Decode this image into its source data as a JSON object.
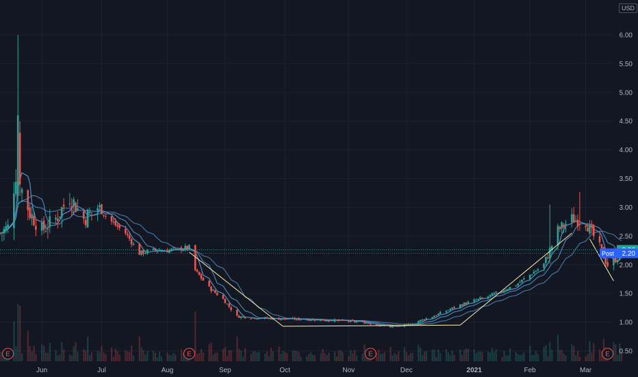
{
  "currency": "USD",
  "colors": {
    "background": "#131722",
    "up": "#26a69a",
    "down": "#ef5350",
    "ma": "#5b9bd5",
    "trendline": "#fff3b0",
    "last_price_label": "#26a69a",
    "post_label": "#2962ff"
  },
  "price_label": {
    "value": "2.26"
  },
  "post_label": {
    "name": "Post",
    "value": "2.20"
  },
  "chart_data": {
    "type": "candlestick",
    "title": "",
    "xlabel": "",
    "ylabel": "",
    "currency": "USD",
    "ylim": [
      0.4,
      6.4
    ],
    "y_ticks": [
      "0.50",
      "1.00",
      "1.50",
      "2.00",
      "2.50",
      "3.00",
      "3.50",
      "4.00",
      "4.50",
      "5.00",
      "5.50",
      "6.00"
    ],
    "x_ticks": [
      {
        "label": "Jun",
        "date": "2020-06-01"
      },
      {
        "label": "Jul",
        "date": "2020-07-01"
      },
      {
        "label": "Aug",
        "date": "2020-08-03"
      },
      {
        "label": "Sep",
        "date": "2020-09-01"
      },
      {
        "label": "Oct",
        "date": "2020-10-01"
      },
      {
        "label": "Nov",
        "date": "2020-11-02"
      },
      {
        "label": "Dec",
        "date": "2020-12-01"
      },
      {
        "label": "2021",
        "date": "2021-01-04",
        "bold": true
      },
      {
        "label": "Feb",
        "date": "2021-02-01"
      },
      {
        "label": "Mar",
        "date": "2021-03-01"
      }
    ],
    "date_range": [
      "2020-05-11",
      "2021-03-19"
    ],
    "earnings_markers": [
      {
        "label": "E",
        "date": "2020-05-15"
      },
      {
        "label": "E",
        "date": "2020-08-14"
      },
      {
        "label": "E",
        "date": "2020-11-13"
      },
      {
        "label": "E",
        "date": "2021-03-12"
      }
    ],
    "price_waypoints": [
      {
        "date": "2020-05-11",
        "close": 2.55
      },
      {
        "date": "2020-05-15",
        "close": 2.65
      },
      {
        "date": "2020-05-19",
        "close": 3.6
      },
      {
        "date": "2020-05-20",
        "close": 4.4
      },
      {
        "date": "2020-05-21",
        "close": 3.4
      },
      {
        "date": "2020-05-26",
        "close": 2.9
      },
      {
        "date": "2020-06-01",
        "close": 2.6
      },
      {
        "date": "2020-06-08",
        "close": 2.8
      },
      {
        "date": "2020-06-15",
        "close": 3.2
      },
      {
        "date": "2020-06-22",
        "close": 2.8
      },
      {
        "date": "2020-06-29",
        "close": 3.0
      },
      {
        "date": "2020-07-06",
        "close": 2.75
      },
      {
        "date": "2020-07-13",
        "close": 2.55
      },
      {
        "date": "2020-07-20",
        "close": 2.2
      },
      {
        "date": "2020-07-27",
        "close": 2.25
      },
      {
        "date": "2020-08-03",
        "close": 2.25
      },
      {
        "date": "2020-08-10",
        "close": 2.28
      },
      {
        "date": "2020-08-14",
        "close": 2.3
      },
      {
        "date": "2020-08-17",
        "close": 1.9
      },
      {
        "date": "2020-08-24",
        "close": 1.6
      },
      {
        "date": "2020-08-31",
        "close": 1.4
      },
      {
        "date": "2020-09-07",
        "close": 1.1
      },
      {
        "date": "2020-09-14",
        "close": 1.08
      },
      {
        "date": "2020-09-28",
        "close": 1.06
      },
      {
        "date": "2020-10-12",
        "close": 1.05
      },
      {
        "date": "2020-10-26",
        "close": 1.03
      },
      {
        "date": "2020-11-09",
        "close": 1.0
      },
      {
        "date": "2020-11-23",
        "close": 0.92
      },
      {
        "date": "2020-12-01",
        "close": 0.95
      },
      {
        "date": "2020-12-14",
        "close": 1.1
      },
      {
        "date": "2020-12-28",
        "close": 1.3
      },
      {
        "date": "2021-01-11",
        "close": 1.45
      },
      {
        "date": "2021-01-25",
        "close": 1.65
      },
      {
        "date": "2021-02-08",
        "close": 2.0
      },
      {
        "date": "2021-02-15",
        "close": 2.6
      },
      {
        "date": "2021-02-22",
        "close": 2.8
      },
      {
        "date": "2021-03-01",
        "close": 2.75
      },
      {
        "date": "2021-03-08",
        "close": 2.3
      },
      {
        "date": "2021-03-12",
        "close": 2.0
      },
      {
        "date": "2021-03-19",
        "close": 2.2
      }
    ],
    "price_lines": [
      2.26,
      2.2
    ],
    "trendlines": [
      {
        "from": {
          "date": "2020-08-14",
          "price": 2.22
        },
        "to": {
          "date": "2020-09-30",
          "price": 0.93
        }
      },
      {
        "from": {
          "date": "2020-09-30",
          "price": 0.93
        },
        "to": {
          "date": "2020-12-28",
          "price": 0.95
        }
      },
      {
        "from": {
          "date": "2020-12-28",
          "price": 0.95
        },
        "to": {
          "date": "2021-02-22",
          "price": 2.55
        }
      },
      {
        "from": {
          "date": "2021-03-03",
          "price": 2.45
        },
        "to": {
          "date": "2021-03-15",
          "price": 1.72
        }
      }
    ],
    "moving_averages": [
      {
        "period": 5
      },
      {
        "period": 10
      },
      {
        "period": 20
      }
    ],
    "grid": true,
    "volume": true
  }
}
